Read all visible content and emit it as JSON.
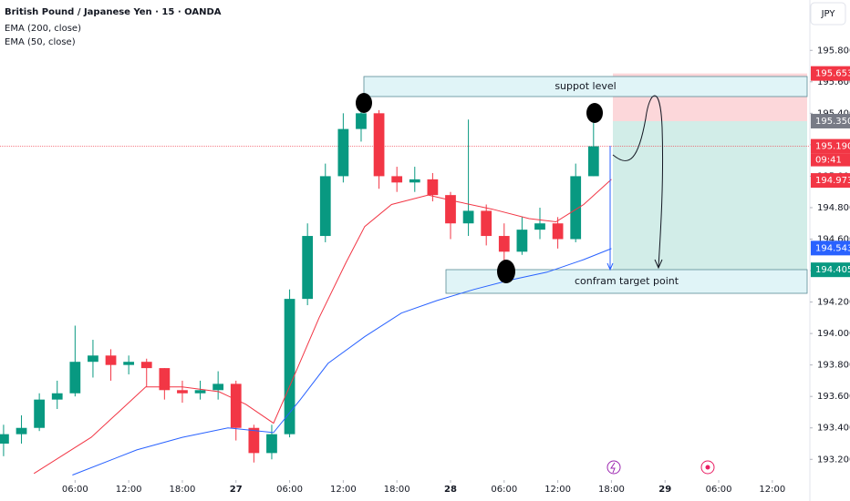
{
  "header": {
    "symbol": "British Pound / Japanese Yen · 15 · OANDA",
    "indicators": [
      "EMA (200, close)",
      "EMA (50, close)"
    ],
    "currency": "JPY"
  },
  "chart_data": {
    "type": "candlestick",
    "x": [
      -26,
      -24,
      -22,
      -20,
      -18,
      -16,
      -14,
      -12,
      -10,
      -8,
      -6,
      -4,
      -2,
      0,
      2,
      4,
      6,
      8,
      10,
      12,
      14,
      16,
      18,
      20,
      22,
      24,
      26,
      28,
      30,
      32,
      34,
      36,
      38,
      40
    ],
    "open": [
      193.3,
      193.36,
      193.4,
      193.58,
      193.62,
      193.82,
      193.86,
      193.8,
      193.82,
      193.78,
      193.64,
      193.62,
      193.64,
      193.68,
      193.4,
      193.24,
      193.36,
      194.22,
      194.62,
      195.0,
      195.3,
      195.4,
      195.0,
      194.96,
      194.98,
      194.88,
      194.7,
      194.78,
      194.62,
      194.52,
      194.66,
      194.7,
      194.6,
      195.0
    ],
    "high": [
      193.42,
      193.48,
      193.62,
      193.7,
      194.05,
      193.96,
      193.9,
      193.86,
      193.84,
      193.78,
      193.7,
      193.7,
      193.76,
      193.7,
      193.42,
      193.42,
      194.28,
      194.7,
      195.08,
      195.4,
      195.5,
      195.42,
      195.06,
      195.06,
      195.02,
      194.9,
      195.36,
      194.82,
      194.7,
      194.74,
      194.8,
      194.74,
      195.08,
      195.34
    ],
    "low": [
      193.22,
      193.3,
      193.38,
      193.52,
      193.6,
      193.72,
      193.7,
      193.74,
      193.66,
      193.58,
      193.56,
      193.58,
      193.58,
      193.32,
      193.18,
      193.2,
      193.34,
      194.18,
      194.58,
      194.96,
      195.22,
      194.92,
      194.9,
      194.9,
      194.84,
      194.6,
      194.62,
      194.56,
      194.46,
      194.5,
      194.6,
      194.54,
      194.58,
      195.0
    ],
    "close": [
      193.36,
      193.4,
      193.58,
      193.62,
      193.82,
      193.86,
      193.8,
      193.82,
      193.78,
      193.64,
      193.62,
      193.64,
      193.68,
      193.4,
      193.24,
      193.36,
      194.22,
      194.62,
      195.0,
      195.3,
      195.4,
      195.0,
      194.96,
      194.98,
      194.88,
      194.7,
      194.78,
      194.62,
      194.52,
      194.66,
      194.7,
      194.6,
      195.0,
      195.19
    ],
    "up_color": "#089981",
    "down_color": "#f23645",
    "lines": [
      {
        "color": "#f23645",
        "x": [
          -22.6,
          -16.2,
          -10.1,
          -6.0,
          -1.9,
          1.1,
          4.2,
          6.2,
          9.3,
          12.3,
          14.4,
          17.4,
          21.5,
          24.6,
          28.7,
          32.8,
          35.8,
          38.9,
          42.0
        ],
        "values": [
          193.11,
          193.34,
          193.66,
          193.66,
          193.63,
          193.55,
          193.43,
          193.69,
          194.1,
          194.45,
          194.68,
          194.82,
          194.88,
          194.84,
          194.79,
          194.73,
          194.71,
          194.82,
          194.98
        ]
      },
      {
        "color": "#2962ff",
        "x": [
          -18.3,
          -11.1,
          -6.0,
          -0.9,
          4.2,
          7.2,
          10.3,
          14.4,
          18.5,
          22.5,
          26.6,
          30.7,
          34.8,
          38.9,
          42.0
        ],
        "values": [
          193.1,
          193.26,
          193.34,
          193.4,
          193.37,
          193.58,
          193.81,
          193.98,
          194.13,
          194.21,
          194.28,
          194.34,
          194.39,
          194.47,
          194.54
        ]
      }
    ],
    "xlim": [
      -26.4,
      64.2
    ],
    "ylim": [
      193.08,
      196.12
    ],
    "xticks": [
      {
        "value": -18,
        "label": "06:00"
      },
      {
        "value": -12,
        "label": "12:00"
      },
      {
        "value": -6,
        "label": "18:00"
      },
      {
        "value": 0,
        "label": "27"
      },
      {
        "value": 6,
        "label": "06:00"
      },
      {
        "value": 12,
        "label": "12:00"
      },
      {
        "value": 18,
        "label": "18:00"
      },
      {
        "value": 24,
        "label": "28"
      },
      {
        "value": 30,
        "label": "06:00"
      },
      {
        "value": 36,
        "label": "12:00"
      },
      {
        "value": 42,
        "label": "18:00"
      },
      {
        "value": 48,
        "label": "29"
      },
      {
        "value": 54,
        "label": "06:00"
      },
      {
        "value": 60,
        "label": "12:00"
      }
    ],
    "yticks": [
      {
        "value": 193.2,
        "label": "193.200"
      },
      {
        "value": 193.4,
        "label": "193.400"
      },
      {
        "value": 193.6,
        "label": "193.600"
      },
      {
        "value": 193.8,
        "label": "193.800"
      },
      {
        "value": 194.0,
        "label": "194.000"
      },
      {
        "value": 194.2,
        "label": "194.200"
      },
      {
        "value": 194.4,
        "label": "194.400"
      },
      {
        "value": 194.6,
        "label": "194.600"
      },
      {
        "value": 194.8,
        "label": "194.800"
      },
      {
        "value": 195.0,
        "label": "195.000"
      },
      {
        "value": 195.2,
        "label": "195.200"
      },
      {
        "value": 195.4,
        "label": "195.400"
      },
      {
        "value": 195.6,
        "label": "195.600"
      },
      {
        "value": 195.8,
        "label": "195.800"
      }
    ],
    "price_labels": [
      {
        "value": 195.653,
        "label": "195.653",
        "color": "#f23645"
      },
      {
        "value": 195.35,
        "label": "195.350",
        "color": "#787b86"
      },
      {
        "value": 195.19,
        "label": "195.190",
        "color": "#f23645"
      },
      {
        "value": 194.973,
        "label": "194.973",
        "color": "#f23645"
      },
      {
        "value": 194.543,
        "label": "194.543",
        "color": "#2962ff"
      },
      {
        "value": 194.405,
        "label": "194.405",
        "color": "#089981"
      }
    ],
    "countdown": "09:41",
    "annotations": [
      "suppot level",
      "confram target point"
    ],
    "grid": false
  }
}
